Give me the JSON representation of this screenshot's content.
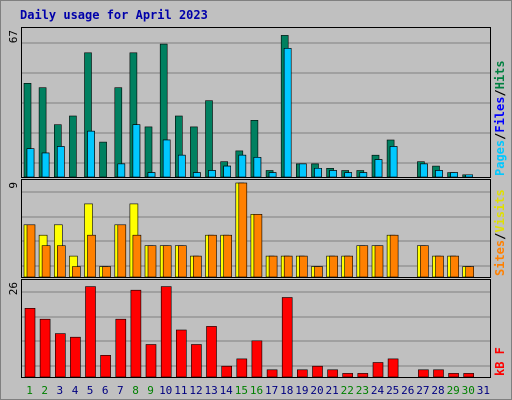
{
  "chart_data": {
    "type": "bar",
    "title": "Daily usage for April 2023",
    "categories": [
      "1",
      "2",
      "3",
      "4",
      "5",
      "6",
      "7",
      "8",
      "9",
      "10",
      "11",
      "12",
      "13",
      "14",
      "15",
      "16",
      "17",
      "18",
      "19",
      "20",
      "21",
      "22",
      "23",
      "24",
      "25",
      "26",
      "27",
      "28",
      "29",
      "30",
      "31"
    ],
    "weekend_days": [
      "1",
      "2",
      "8",
      "9",
      "15",
      "16",
      "22",
      "23",
      "29",
      "30"
    ],
    "panels": [
      {
        "id": "hits-panel",
        "max_label": "67",
        "ymax": 67,
        "side_labels": [
          {
            "text": "Pages",
            "color": "#00c8ff"
          },
          {
            "text": "Files",
            "color": "#0000ff"
          },
          {
            "text": "Hits",
            "color": "#008040"
          }
        ],
        "separator_color": "#000000",
        "series": [
          {
            "name": "Hits",
            "color": "#008060",
            "values": [
              43,
              41,
              24,
              28,
              57,
              16,
              41,
              57,
              23,
              61,
              28,
              23,
              35,
              7,
              12,
              26,
              3,
              65,
              6,
              6,
              4,
              3,
              3,
              10,
              17,
              0,
              7,
              5,
              2,
              1,
              0
            ]
          },
          {
            "name": "Files",
            "color": "#0080ff",
            "values": [
              13,
              11,
              14,
              0,
              21,
              0,
              6,
              24,
              2,
              17,
              10,
              2,
              3,
              5,
              10,
              9,
              2,
              59,
              6,
              4,
              3,
              2,
              2,
              8,
              14,
              0,
              6,
              3,
              2,
              1,
              0
            ]
          },
          {
            "name": "Pages",
            "color": "#00c8ff",
            "values": [
              13,
              11,
              14,
              0,
              21,
              0,
              6,
              24,
              2,
              17,
              10,
              2,
              3,
              5,
              10,
              9,
              2,
              59,
              6,
              4,
              3,
              2,
              2,
              8,
              14,
              0,
              6,
              3,
              2,
              1,
              0
            ]
          }
        ]
      },
      {
        "id": "visits-panel",
        "max_label": "9",
        "ymax": 9,
        "side_labels": [
          {
            "text": "Sites",
            "color": "#ff8000"
          },
          {
            "text": "Visits",
            "color": "#e0e000"
          }
        ],
        "separator_color": "#000000",
        "series": [
          {
            "name": "Visits",
            "color": "#ffff00",
            "values": [
              5,
              4,
              5,
              2,
              7,
              1,
              5,
              7,
              3,
              3,
              3,
              2,
              4,
              4,
              9,
              6,
              2,
              2,
              2,
              1,
              2,
              2,
              3,
              3,
              4,
              0,
              3,
              2,
              2,
              1,
              0
            ]
          },
          {
            "name": "Sites",
            "color": "#ff8000",
            "values": [
              5,
              3,
              3,
              1,
              4,
              1,
              5,
              4,
              3,
              3,
              3,
              2,
              4,
              4,
              9,
              6,
              2,
              2,
              2,
              1,
              2,
              2,
              3,
              3,
              4,
              0,
              3,
              2,
              2,
              1,
              0
            ]
          }
        ]
      },
      {
        "id": "kbytes-panel",
        "max_label": "26",
        "ymax": 26,
        "side_labels": [
          {
            "text": "kB F",
            "color": "#ff0000"
          }
        ],
        "separator_color": "#000000",
        "series": [
          {
            "name": "kB F",
            "color": "#ff0000",
            "values": [
              19,
              16,
              12,
              11,
              25,
              6,
              16,
              24,
              9,
              25,
              13,
              9,
              14,
              3,
              5,
              10,
              2,
              22,
              2,
              3,
              2,
              1,
              1,
              4,
              5,
              0,
              2,
              2,
              1,
              1,
              0
            ]
          }
        ]
      }
    ],
    "colors": {
      "background": "#c0c0c0",
      "title": "#0000aa",
      "weekday_label": "#000080",
      "weekend_label": "#008000"
    }
  }
}
